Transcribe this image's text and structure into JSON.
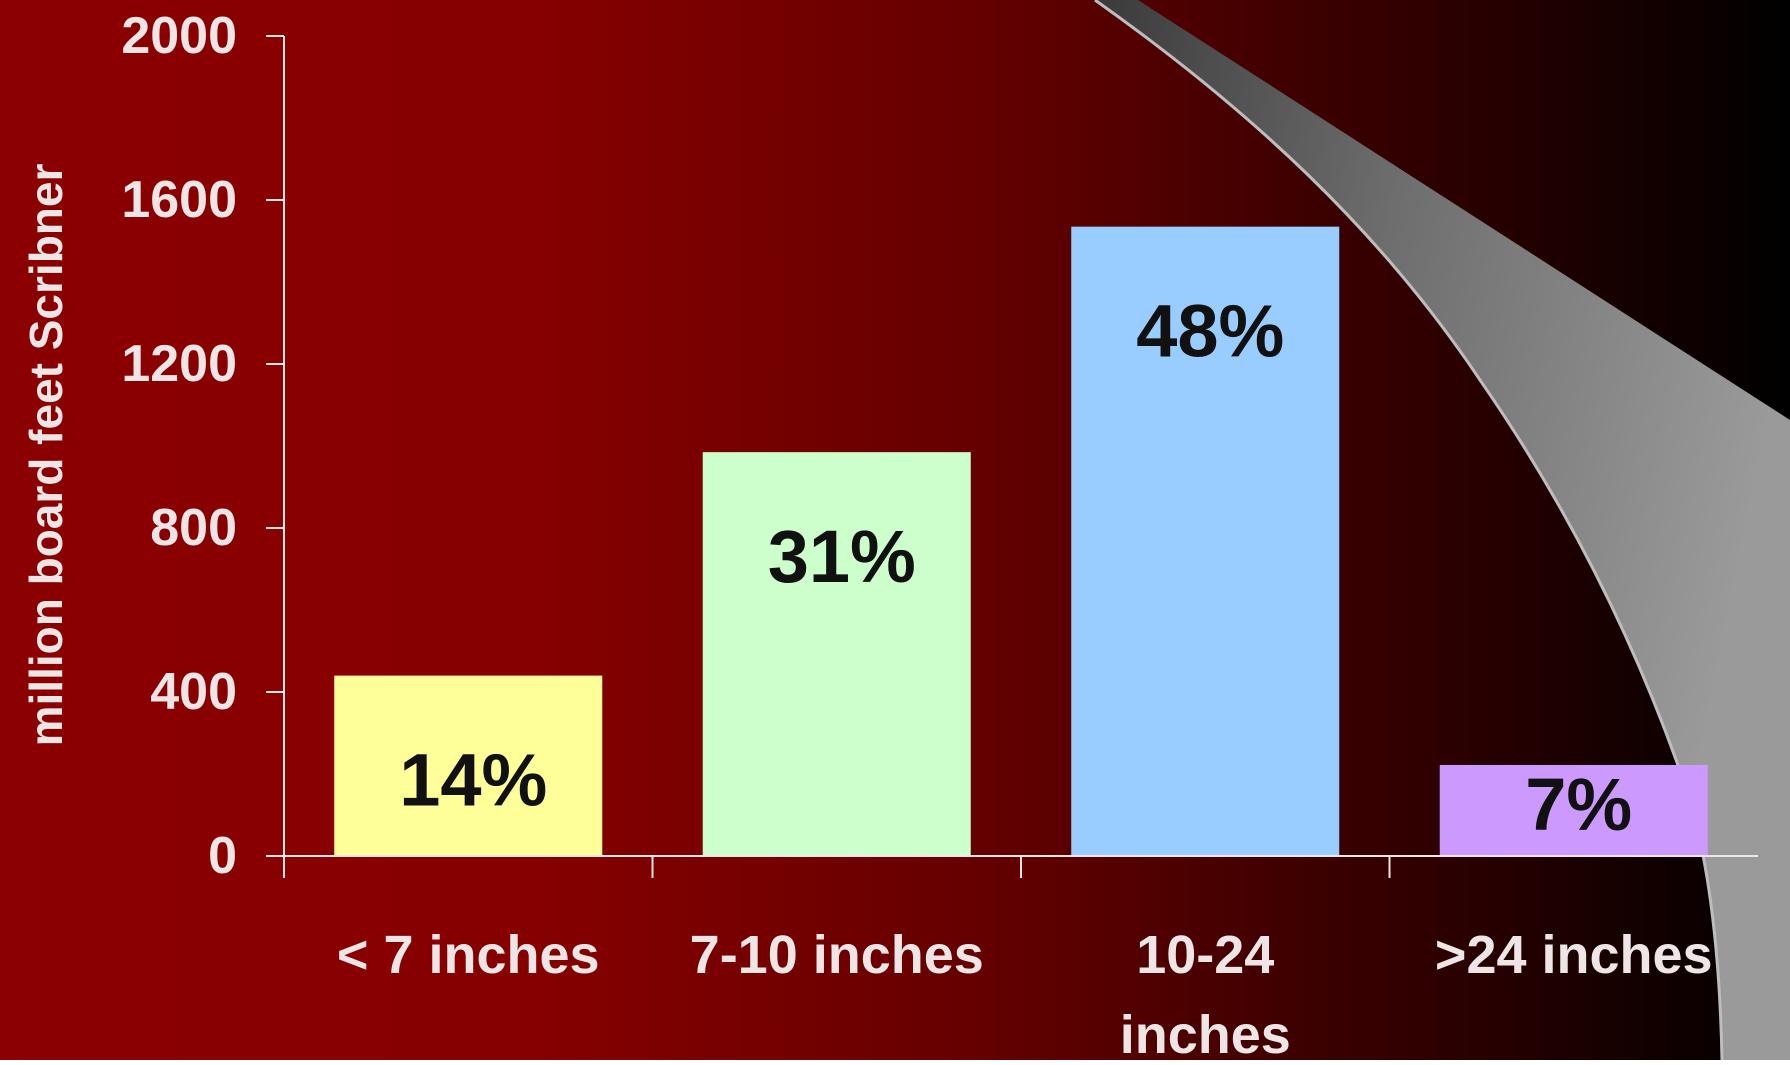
{
  "chart_data": {
    "type": "bar",
    "title": "",
    "ylabel": "million board feet Scribner",
    "xlabel": "",
    "ylim": [
      0,
      2000
    ],
    "yticks": [
      0,
      400,
      800,
      1200,
      1600,
      2000
    ],
    "ytick_labels": [
      "0",
      "400",
      "800",
      "1200",
      "1600",
      "2000"
    ],
    "categories": [
      "< 7 inches",
      "7-10 inches",
      "10-24 inches",
      ">24 inches"
    ],
    "category_lines": [
      [
        "< 7 inches"
      ],
      [
        "7-10 inches"
      ],
      [
        "10-24",
        "inches"
      ],
      [
        ">24 inches"
      ]
    ],
    "values": [
      440,
      985,
      1535,
      222
    ],
    "data_labels": [
      "14%",
      "31%",
      "48%",
      "7%"
    ],
    "bar_colors": [
      "#FFFF99",
      "#CCFFCC",
      "#99CCFF",
      "#CC99FF"
    ],
    "grid": false,
    "legend": "none"
  },
  "colors": {
    "background_left": "#8B0000",
    "background_right": "#000000",
    "axis_text": "#EEE6E6",
    "label_text": "#111111"
  }
}
